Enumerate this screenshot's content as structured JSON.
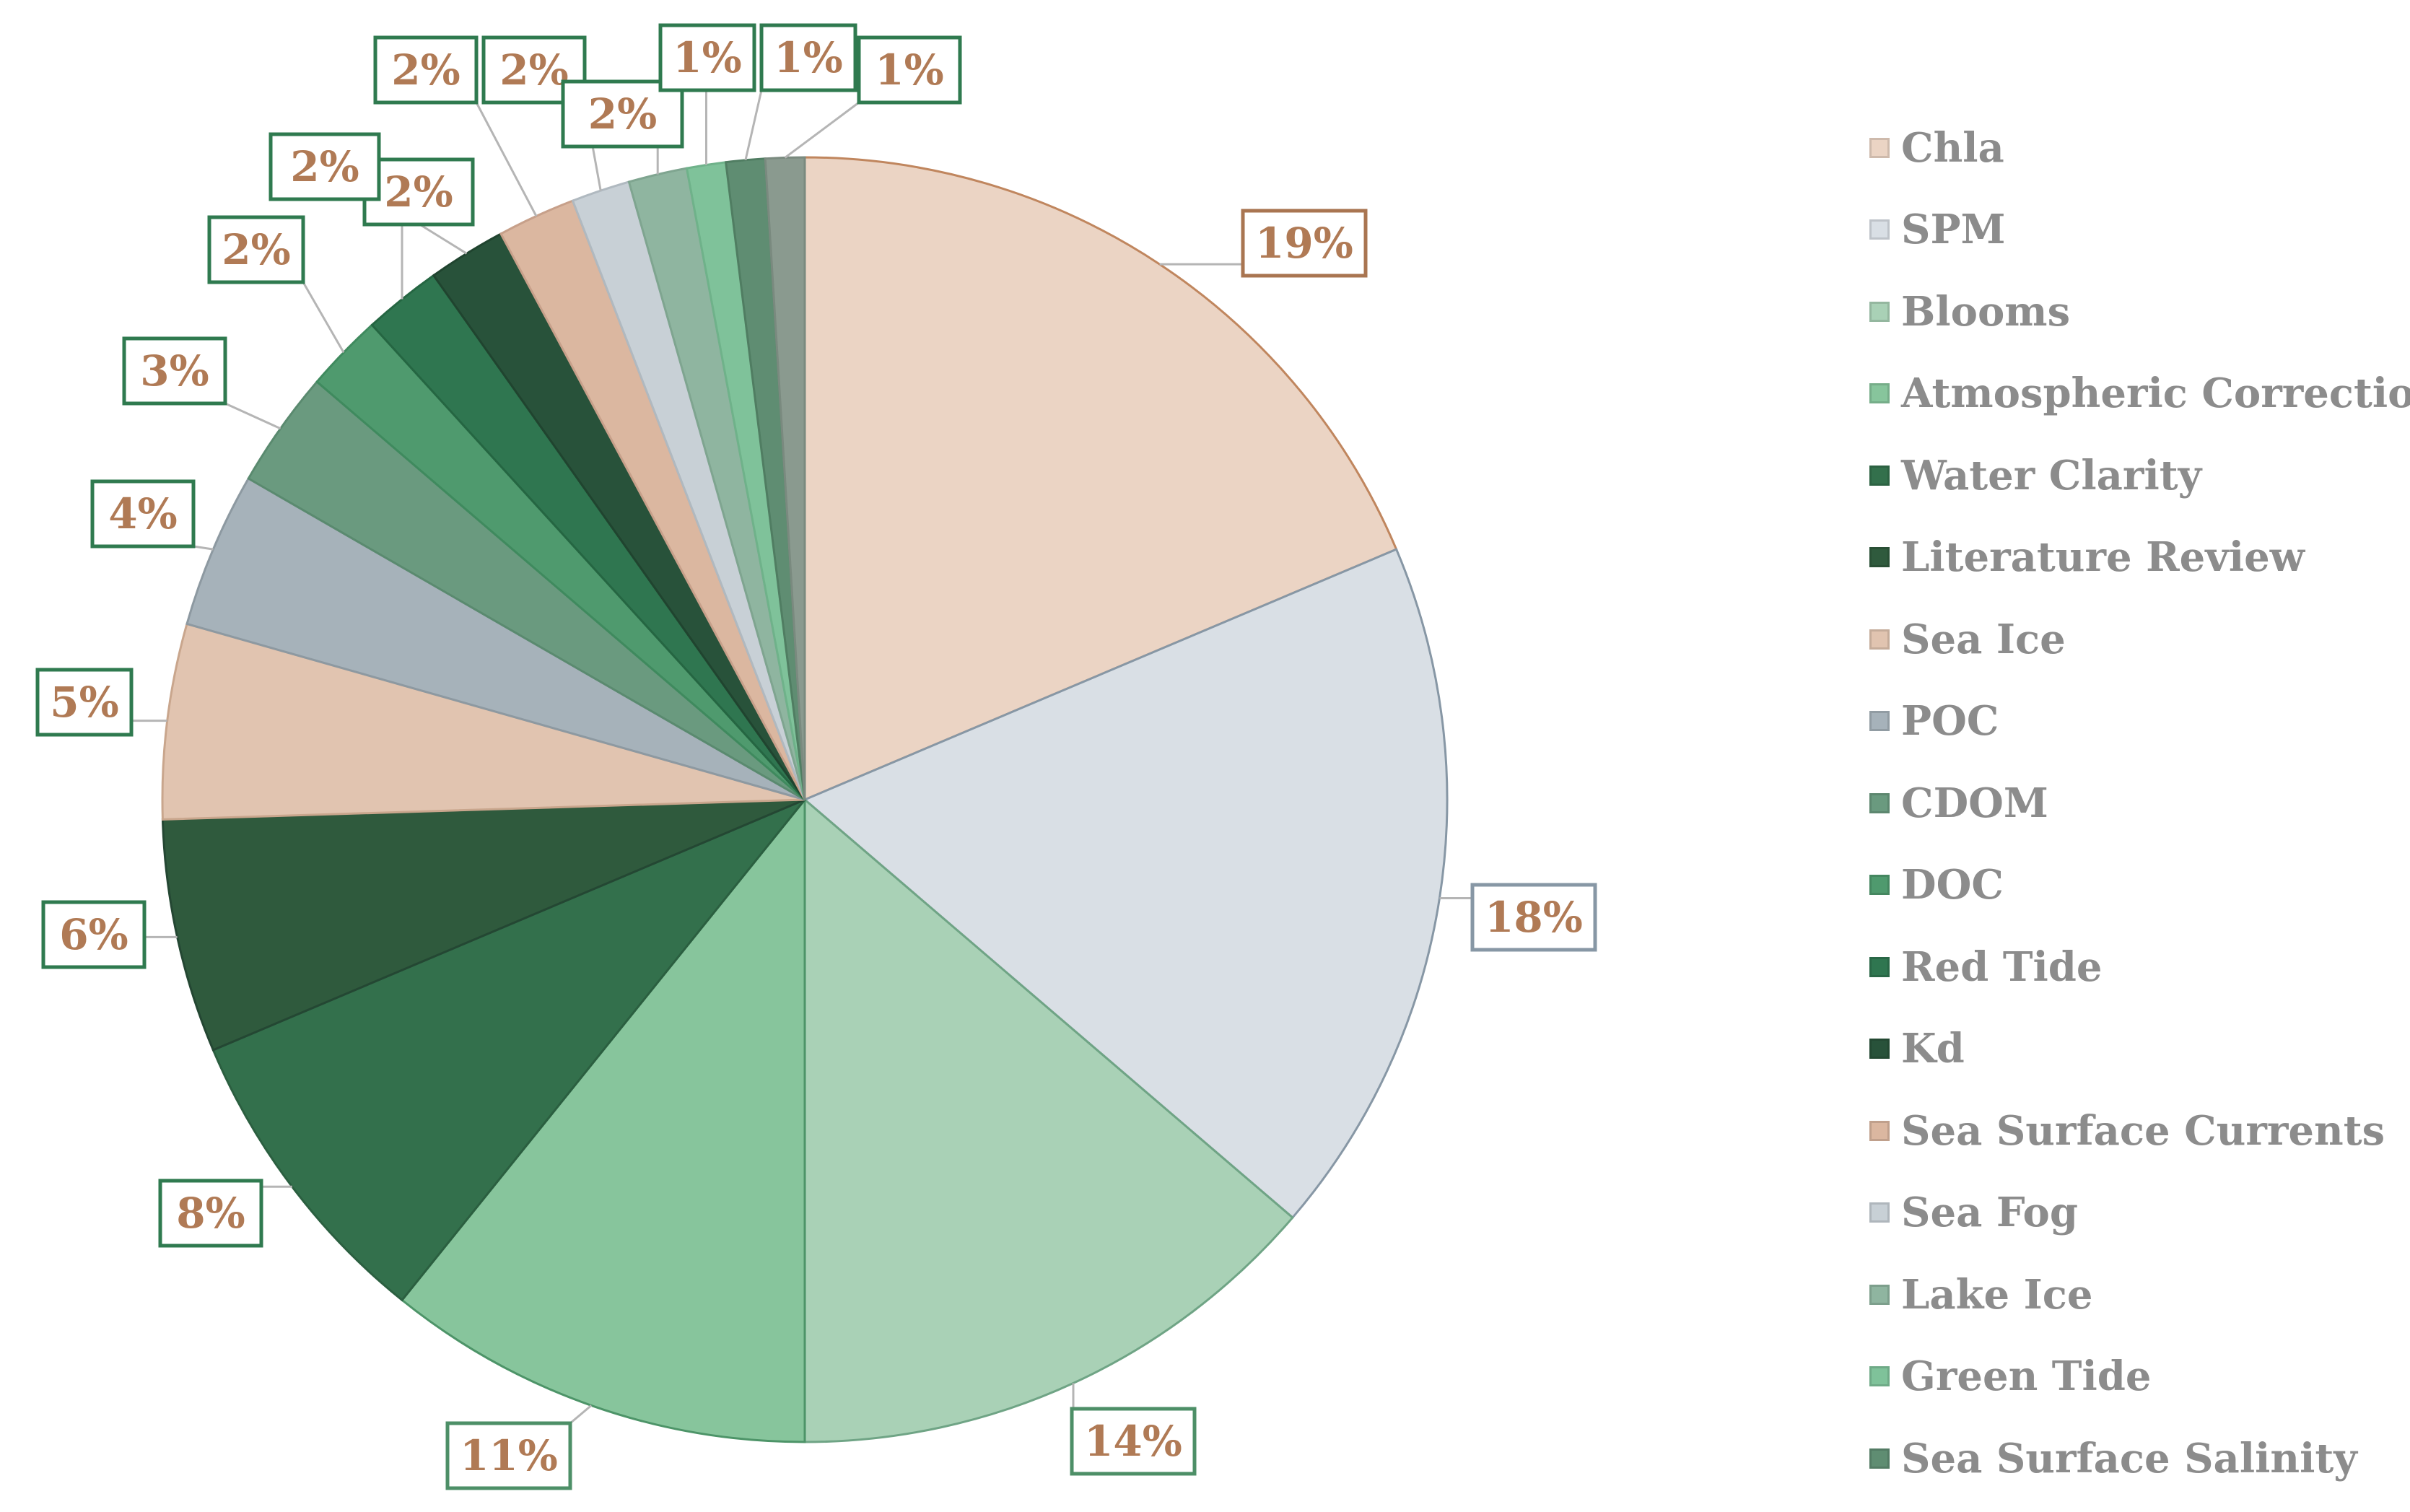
{
  "chart_data": {
    "type": "pie",
    "slices": [
      {
        "label": "Chla",
        "value": 19,
        "display": "19%",
        "color": "#ebd4c4",
        "edge": "#c0865e",
        "label_color": "#b07a55",
        "box_color": "#a97551"
      },
      {
        "label": "SPM",
        "value": 18,
        "display": "18%",
        "color": "#d9dfe5",
        "edge": "#8797a5",
        "label_color": "#b07a55",
        "box_color": "#8797a5"
      },
      {
        "label": "Blooms",
        "value": 14,
        "display": "14%",
        "color": "#a9d1b6",
        "edge": "#6fa485",
        "label_color": "#b07a55",
        "box_color": "#4d8f67"
      },
      {
        "label": "Atmospheric Correction",
        "value": 11,
        "display": "11%",
        "color": "#87c59c",
        "edge": "#4d9468",
        "label_color": "#b07a55",
        "box_color": "#4d8f67"
      },
      {
        "label": "Water Clarity",
        "value": 8,
        "display": "8%",
        "color": "#33704c",
        "edge": "#2b5f40",
        "label_color": "#b07a55",
        "box_color": "#2f7a4f"
      },
      {
        "label": "Literature Review",
        "value": 6,
        "display": "6%",
        "color": "#2f5a3d",
        "edge": "#244733",
        "label_color": "#b07a55",
        "box_color": "#2f7a4f"
      },
      {
        "label": "Sea Ice",
        "value": 5,
        "display": "5%",
        "color": "#e1c4b0",
        "edge": "#c9a68d",
        "label_color": "#b07a55",
        "box_color": "#2f7a4f"
      },
      {
        "label": "POC",
        "value": 4,
        "display": "4%",
        "color": "#a6b2ba",
        "edge": "#8d99a1",
        "label_color": "#b07a55",
        "box_color": "#2f7a4f"
      },
      {
        "label": "CDOM",
        "value": 3,
        "display": "3%",
        "color": "#6a9a7f",
        "edge": "#5a8a6f",
        "label_color": "#b07a55",
        "box_color": "#2f7a4f"
      },
      {
        "label": "DOC",
        "value": 2,
        "display": "2%",
        "color": "#4f9a6e",
        "edge": "#3f8a5e",
        "label_color": "#b07a55",
        "box_color": "#2f7a4f"
      },
      {
        "label": "Red Tide",
        "value": 2,
        "display": "2%",
        "color": "#2f7650",
        "edge": "#256642",
        "label_color": "#b07a55",
        "box_color": "#2f7a4f"
      },
      {
        "label": "Kd",
        "value": 2,
        "display": "2%",
        "color": "#28523a",
        "edge": "#20442f",
        "label_color": "#b07a55",
        "box_color": "#2f7a4f"
      },
      {
        "label": "Sea Surface Currents",
        "value": 2,
        "display": "2%",
        "color": "#dbb7a0",
        "edge": "#c7a08a",
        "label_color": "#b07a55",
        "box_color": "#2f7a4f"
      },
      {
        "label": "Sea Fog",
        "value": 1.5,
        "display": "2%",
        "color": "#c8d0d6",
        "edge": "#b0b9c0",
        "label_color": "#b07a55",
        "box_color": "#2f7a4f"
      },
      {
        "label": "Lake Ice",
        "value": 1.5,
        "display": "2%",
        "color": "#8fb5a0",
        "edge": "#7fa590",
        "label_color": "#b07a55",
        "box_color": "#2f7a4f"
      },
      {
        "label": "Green Tide",
        "value": 1,
        "display": "1%",
        "color": "#7fc29a",
        "edge": "#6fb28a",
        "label_color": "#b07a55",
        "box_color": "#2f7a4f"
      },
      {
        "label": "Sea Surface Salinity",
        "value": 1,
        "display": "1%",
        "color": "#5f8d72",
        "edge": "#507d62",
        "label_color": "#b07a55",
        "box_color": "#2f7a4f"
      },
      {
        "label": "",
        "value": 1,
        "display": "1%",
        "color": "#8a9a8f",
        "edge": "#7a8a7f",
        "label_color": "#b07a55",
        "box_color": "#2f7a4f"
      }
    ],
    "legend": [
      "Chla",
      "SPM",
      "Blooms",
      "Atmospheric Correction",
      "Water Clarity",
      "Literature Review",
      "Sea Ice",
      "POC",
      "CDOM",
      "DOC",
      "Red Tide",
      "Kd",
      "Sea Surface Currents",
      "Sea Fog",
      "Lake Ice",
      "Green Tide",
      "Sea Surface Salinity"
    ],
    "legend_placement": "right"
  }
}
